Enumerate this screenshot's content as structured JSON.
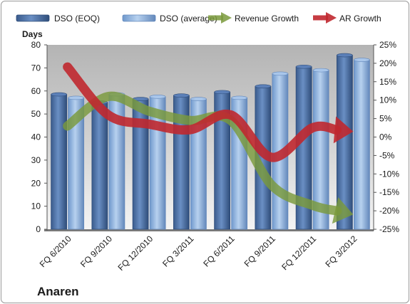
{
  "chart_data": {
    "type": "bar",
    "title": "",
    "company": "Anaren",
    "ylabel": "Days",
    "xlabel": "",
    "categories": [
      "FQ 6/2010",
      "FQ 9/2010",
      "FQ 12/2010",
      "FQ 3/2011",
      "FQ 6/2011",
      "FQ 9/2011",
      "FQ 12/2011",
      "FQ 3/2012"
    ],
    "ylim": [
      0,
      80
    ],
    "y_ticks": [
      "0",
      "10",
      "20",
      "30",
      "40",
      "50",
      "60",
      "70",
      "80"
    ],
    "y2lim": [
      -25,
      25
    ],
    "y2_ticks": [
      "-25%",
      "-20%",
      "-15%",
      "-10%",
      "-5%",
      "0%",
      "5%",
      "10%",
      "15%",
      "20%",
      "25%"
    ],
    "legend_position": "top",
    "grid": false,
    "series": [
      {
        "name": "DSO (EOQ)",
        "type": "bar",
        "axis": "left",
        "color": "#4a6fa5",
        "values": [
          58.5,
          55.0,
          56.5,
          58.0,
          59.5,
          62.0,
          70.5,
          75.5
        ]
      },
      {
        "name": "DSO (average)",
        "type": "bar",
        "axis": "left",
        "color": "#8fb4dd",
        "values": [
          57.0,
          58.5,
          57.5,
          56.5,
          57.0,
          67.5,
          69.0,
          73.5
        ]
      },
      {
        "name": "Revenue Growth",
        "type": "arrow",
        "axis": "right",
        "color": "#7a9a3c",
        "values": [
          3.0,
          11.0,
          7.0,
          4.5,
          4.5,
          -13.0,
          -18.5,
          -21.0
        ]
      },
      {
        "name": "AR Growth",
        "type": "arrow",
        "axis": "right",
        "color": "#c0282f",
        "values": [
          19.0,
          6.0,
          3.5,
          2.0,
          6.0,
          -5.5,
          2.5,
          1.5
        ]
      }
    ]
  }
}
